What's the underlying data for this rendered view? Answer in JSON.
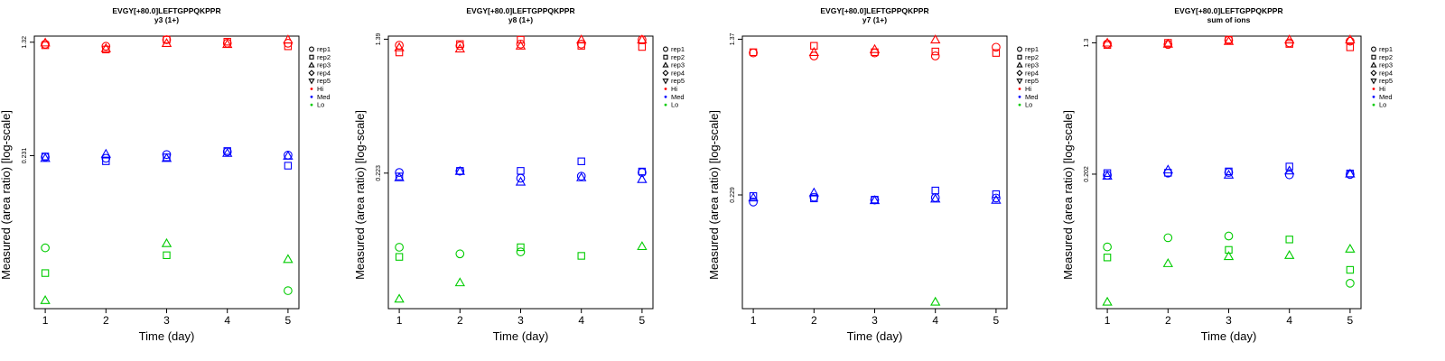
{
  "shape_legend": [
    {
      "label": "rep1",
      "shape": "circle"
    },
    {
      "label": "rep2",
      "shape": "square"
    },
    {
      "label": "rep3",
      "shape": "triangle-up"
    },
    {
      "label": "rep4",
      "shape": "diamond"
    },
    {
      "label": "rep5",
      "shape": "triangle-down"
    }
  ],
  "color_legend": [
    {
      "label": "Hi",
      "color": "#ff0000"
    },
    {
      "label": "Med",
      "color": "#0000ff"
    },
    {
      "label": "Lo",
      "color": "#00cc00"
    }
  ],
  "chart_data": [
    {
      "type": "scatter",
      "title": "EVGY[+80.0]LEFTGPPQKPPR",
      "subtitle": "y3 (1+)",
      "xlabel": "Time (day)",
      "ylabel": "Measured (area ratio) [log-scale]",
      "x_ticks": [
        "1",
        "2",
        "3",
        "4",
        "5"
      ],
      "y_ticks": [
        "0.231",
        "1.32"
      ],
      "log_scale": true,
      "ylim": [
        0.022,
        1.45
      ],
      "points": [
        {
          "group": "Hi",
          "rep": "rep1",
          "x": 1,
          "y": 1.28
        },
        {
          "group": "Hi",
          "rep": "rep2",
          "x": 1,
          "y": 1.26
        },
        {
          "group": "Hi",
          "rep": "rep3",
          "x": 1,
          "y": 1.31
        },
        {
          "group": "Hi",
          "rep": "rep1",
          "x": 2,
          "y": 1.24
        },
        {
          "group": "Hi",
          "rep": "rep2",
          "x": 2,
          "y": 1.18
        },
        {
          "group": "Hi",
          "rep": "rep3",
          "x": 2,
          "y": 1.2
        },
        {
          "group": "Hi",
          "rep": "rep1",
          "x": 3,
          "y": 1.38
        },
        {
          "group": "Hi",
          "rep": "rep2",
          "x": 3,
          "y": 1.4
        },
        {
          "group": "Hi",
          "rep": "rep3",
          "x": 3,
          "y": 1.3
        },
        {
          "group": "Hi",
          "rep": "rep1",
          "x": 4,
          "y": 1.3
        },
        {
          "group": "Hi",
          "rep": "rep2",
          "x": 4,
          "y": 1.33
        },
        {
          "group": "Hi",
          "rep": "rep3",
          "x": 4,
          "y": 1.28
        },
        {
          "group": "Hi",
          "rep": "rep3",
          "x": 5,
          "y": 1.42
        },
        {
          "group": "Hi",
          "rep": "rep2",
          "x": 5,
          "y": 1.24
        },
        {
          "group": "Hi",
          "rep": "rep1",
          "x": 5,
          "y": 1.3
        },
        {
          "group": "Med",
          "rep": "rep1",
          "x": 1,
          "y": 0.226
        },
        {
          "group": "Med",
          "rep": "rep2",
          "x": 1,
          "y": 0.228
        },
        {
          "group": "Med",
          "rep": "rep3",
          "x": 1,
          "y": 0.222
        },
        {
          "group": "Med",
          "rep": "rep3",
          "x": 2,
          "y": 0.237
        },
        {
          "group": "Med",
          "rep": "rep2",
          "x": 2,
          "y": 0.212
        },
        {
          "group": "Med",
          "rep": "rep1",
          "x": 2,
          "y": 0.222
        },
        {
          "group": "Med",
          "rep": "rep1",
          "x": 3,
          "y": 0.235
        },
        {
          "group": "Med",
          "rep": "rep2",
          "x": 3,
          "y": 0.225
        },
        {
          "group": "Med",
          "rep": "rep3",
          "x": 3,
          "y": 0.222
        },
        {
          "group": "Med",
          "rep": "rep1",
          "x": 4,
          "y": 0.245
        },
        {
          "group": "Med",
          "rep": "rep2",
          "x": 4,
          "y": 0.248
        },
        {
          "group": "Med",
          "rep": "rep3",
          "x": 4,
          "y": 0.24
        },
        {
          "group": "Med",
          "rep": "rep1",
          "x": 5,
          "y": 0.233
        },
        {
          "group": "Med",
          "rep": "rep2",
          "x": 5,
          "y": 0.198
        },
        {
          "group": "Med",
          "rep": "rep3",
          "x": 5,
          "y": 0.23
        },
        {
          "group": "Lo",
          "rep": "rep1",
          "x": 1,
          "y": 0.056
        },
        {
          "group": "Lo",
          "rep": "rep2",
          "x": 1,
          "y": 0.038
        },
        {
          "group": "Lo",
          "rep": "rep3",
          "x": 1,
          "y": 0.025
        },
        {
          "group": "Lo",
          "rep": "rep3",
          "x": 3,
          "y": 0.06
        },
        {
          "group": "Lo",
          "rep": "rep2",
          "x": 3,
          "y": 0.05
        },
        {
          "group": "Lo",
          "rep": "rep3",
          "x": 5,
          "y": 0.047
        },
        {
          "group": "Lo",
          "rep": "rep1",
          "x": 5,
          "y": 0.029
        }
      ]
    },
    {
      "type": "scatter",
      "title": "EVGY[+80.0]LEFTGPPQKPPR",
      "subtitle": "y8 (1+)",
      "xlabel": "Time (day)",
      "ylabel": "Measured (area ratio) [log-scale]",
      "x_ticks": [
        "1",
        "2",
        "3",
        "4",
        "5"
      ],
      "y_ticks": [
        "0.223",
        "1.39"
      ],
      "log_scale": true,
      "ylim": [
        0.035,
        1.45
      ],
      "points": [
        {
          "group": "Hi",
          "rep": "rep1",
          "x": 1,
          "y": 1.28
        },
        {
          "group": "Hi",
          "rep": "rep2",
          "x": 1,
          "y": 1.16
        },
        {
          "group": "Hi",
          "rep": "rep3",
          "x": 1,
          "y": 1.24
        },
        {
          "group": "Hi",
          "rep": "rep1",
          "x": 2,
          "y": 1.27
        },
        {
          "group": "Hi",
          "rep": "rep2",
          "x": 2,
          "y": 1.3
        },
        {
          "group": "Hi",
          "rep": "rep3",
          "x": 2,
          "y": 1.22
        },
        {
          "group": "Hi",
          "rep": "rep1",
          "x": 3,
          "y": 1.3
        },
        {
          "group": "Hi",
          "rep": "rep2",
          "x": 3,
          "y": 1.4
        },
        {
          "group": "Hi",
          "rep": "rep3",
          "x": 3,
          "y": 1.27
        },
        {
          "group": "Hi",
          "rep": "rep1",
          "x": 4,
          "y": 1.3
        },
        {
          "group": "Hi",
          "rep": "rep2",
          "x": 4,
          "y": 1.27
        },
        {
          "group": "Hi",
          "rep": "rep3",
          "x": 4,
          "y": 1.42
        },
        {
          "group": "Hi",
          "rep": "rep1",
          "x": 5,
          "y": 1.38
        },
        {
          "group": "Hi",
          "rep": "rep2",
          "x": 5,
          "y": 1.25
        },
        {
          "group": "Hi",
          "rep": "rep3",
          "x": 5,
          "y": 1.42
        },
        {
          "group": "Med",
          "rep": "rep1",
          "x": 1,
          "y": 0.225
        },
        {
          "group": "Med",
          "rep": "rep2",
          "x": 1,
          "y": 0.213
        },
        {
          "group": "Med",
          "rep": "rep3",
          "x": 1,
          "y": 0.21
        },
        {
          "group": "Med",
          "rep": "rep1",
          "x": 2,
          "y": 0.229
        },
        {
          "group": "Med",
          "rep": "rep2",
          "x": 2,
          "y": 0.23
        },
        {
          "group": "Med",
          "rep": "rep3",
          "x": 2,
          "y": 0.229
        },
        {
          "group": "Med",
          "rep": "rep1",
          "x": 3,
          "y": 0.208
        },
        {
          "group": "Med",
          "rep": "rep2",
          "x": 3,
          "y": 0.23
        },
        {
          "group": "Med",
          "rep": "rep3",
          "x": 3,
          "y": 0.198
        },
        {
          "group": "Med",
          "rep": "rep1",
          "x": 4,
          "y": 0.214
        },
        {
          "group": "Med",
          "rep": "rep2",
          "x": 4,
          "y": 0.262
        },
        {
          "group": "Med",
          "rep": "rep3",
          "x": 4,
          "y": 0.21
        },
        {
          "group": "Med",
          "rep": "rep1",
          "x": 5,
          "y": 0.225
        },
        {
          "group": "Med",
          "rep": "rep2",
          "x": 5,
          "y": 0.228
        },
        {
          "group": "Med",
          "rep": "rep3",
          "x": 5,
          "y": 0.205
        },
        {
          "group": "Lo",
          "rep": "rep1",
          "x": 1,
          "y": 0.081
        },
        {
          "group": "Lo",
          "rep": "rep2",
          "x": 1,
          "y": 0.071
        },
        {
          "group": "Lo",
          "rep": "rep3",
          "x": 1,
          "y": 0.04
        },
        {
          "group": "Lo",
          "rep": "rep1",
          "x": 2,
          "y": 0.074
        },
        {
          "group": "Lo",
          "rep": "rep3",
          "x": 2,
          "y": 0.05
        },
        {
          "group": "Lo",
          "rep": "rep1",
          "x": 3,
          "y": 0.076
        },
        {
          "group": "Lo",
          "rep": "rep2",
          "x": 3,
          "y": 0.081
        },
        {
          "group": "Lo",
          "rep": "rep2",
          "x": 4,
          "y": 0.072
        },
        {
          "group": "Lo",
          "rep": "rep3",
          "x": 5,
          "y": 0.082
        }
      ]
    },
    {
      "type": "scatter",
      "title": "EVGY[+80.0]LEFTGPPQKPPR",
      "subtitle": "y7 (1+)",
      "xlabel": "Time (day)",
      "ylabel": "Measured (area ratio) [log-scale]",
      "x_ticks": [
        "1",
        "2",
        "3",
        "4",
        "5"
      ],
      "y_ticks": [
        "0.229",
        "1.37"
      ],
      "log_scale": true,
      "ylim": [
        0.062,
        1.42
      ],
      "points": [
        {
          "group": "Hi",
          "rep": "rep1",
          "x": 1,
          "y": 1.17
        },
        {
          "group": "Hi",
          "rep": "rep2",
          "x": 1,
          "y": 1.18
        },
        {
          "group": "Hi",
          "rep": "rep1",
          "x": 2,
          "y": 1.13
        },
        {
          "group": "Hi",
          "rep": "rep2",
          "x": 2,
          "y": 1.27
        },
        {
          "group": "Hi",
          "rep": "rep3",
          "x": 2,
          "y": 1.18
        },
        {
          "group": "Hi",
          "rep": "rep1",
          "x": 3,
          "y": 1.17
        },
        {
          "group": "Hi",
          "rep": "rep2",
          "x": 3,
          "y": 1.18
        },
        {
          "group": "Hi",
          "rep": "rep3",
          "x": 3,
          "y": 1.22
        },
        {
          "group": "Hi",
          "rep": "rep1",
          "x": 4,
          "y": 1.13
        },
        {
          "group": "Hi",
          "rep": "rep2",
          "x": 4,
          "y": 1.19
        },
        {
          "group": "Hi",
          "rep": "rep3",
          "x": 4,
          "y": 1.37
        },
        {
          "group": "Hi",
          "rep": "rep1",
          "x": 5,
          "y": 1.25
        },
        {
          "group": "Hi",
          "rep": "rep2",
          "x": 5,
          "y": 1.17
        },
        {
          "group": "Med",
          "rep": "rep1",
          "x": 1,
          "y": 0.211
        },
        {
          "group": "Med",
          "rep": "rep2",
          "x": 1,
          "y": 0.226
        },
        {
          "group": "Med",
          "rep": "rep3",
          "x": 1,
          "y": 0.222
        },
        {
          "group": "Med",
          "rep": "rep1",
          "x": 2,
          "y": 0.223
        },
        {
          "group": "Med",
          "rep": "rep2",
          "x": 2,
          "y": 0.22
        },
        {
          "group": "Med",
          "rep": "rep3",
          "x": 2,
          "y": 0.235
        },
        {
          "group": "Med",
          "rep": "rep1",
          "x": 3,
          "y": 0.216
        },
        {
          "group": "Med",
          "rep": "rep2",
          "x": 3,
          "y": 0.217
        },
        {
          "group": "Med",
          "rep": "rep3",
          "x": 3,
          "y": 0.215
        },
        {
          "group": "Med",
          "rep": "rep1",
          "x": 4,
          "y": 0.222
        },
        {
          "group": "Med",
          "rep": "rep2",
          "x": 4,
          "y": 0.241
        },
        {
          "group": "Med",
          "rep": "rep3",
          "x": 4,
          "y": 0.219
        },
        {
          "group": "Med",
          "rep": "rep1",
          "x": 5,
          "y": 0.221
        },
        {
          "group": "Med",
          "rep": "rep2",
          "x": 5,
          "y": 0.231
        },
        {
          "group": "Med",
          "rep": "rep3",
          "x": 5,
          "y": 0.216
        },
        {
          "group": "Lo",
          "rep": "rep3",
          "x": 4,
          "y": 0.067
        }
      ]
    },
    {
      "type": "scatter",
      "title": "EVGY[+80.0]LEFTGPPQKPPR",
      "subtitle": "sum of ions",
      "xlabel": "Time (day)",
      "ylabel": "Measured (area ratio) [log-scale]",
      "x_ticks": [
        "1",
        "2",
        "3",
        "4",
        "5"
      ],
      "y_ticks": [
        "0.202",
        "1.3"
      ],
      "log_scale": true,
      "ylim": [
        0.03,
        1.43
      ],
      "points": [
        {
          "group": "Hi",
          "rep": "rep1",
          "x": 1,
          "y": 1.28
        },
        {
          "group": "Hi",
          "rep": "rep2",
          "x": 1,
          "y": 1.26
        },
        {
          "group": "Hi",
          "rep": "rep3",
          "x": 1,
          "y": 1.3
        },
        {
          "group": "Hi",
          "rep": "rep1",
          "x": 2,
          "y": 1.27
        },
        {
          "group": "Hi",
          "rep": "rep2",
          "x": 2,
          "y": 1.3
        },
        {
          "group": "Hi",
          "rep": "rep3",
          "x": 2,
          "y": 1.28
        },
        {
          "group": "Hi",
          "rep": "rep1",
          "x": 3,
          "y": 1.35
        },
        {
          "group": "Hi",
          "rep": "rep2",
          "x": 3,
          "y": 1.37
        },
        {
          "group": "Hi",
          "rep": "rep3",
          "x": 3,
          "y": 1.33
        },
        {
          "group": "Hi",
          "rep": "rep1",
          "x": 4,
          "y": 1.3
        },
        {
          "group": "Hi",
          "rep": "rep2",
          "x": 4,
          "y": 1.28
        },
        {
          "group": "Hi",
          "rep": "rep3",
          "x": 4,
          "y": 1.38
        },
        {
          "group": "Hi",
          "rep": "rep1",
          "x": 5,
          "y": 1.33
        },
        {
          "group": "Hi",
          "rep": "rep2",
          "x": 5,
          "y": 1.22
        },
        {
          "group": "Hi",
          "rep": "rep3",
          "x": 5,
          "y": 1.38
        },
        {
          "group": "Med",
          "rep": "rep1",
          "x": 1,
          "y": 0.199
        },
        {
          "group": "Med",
          "rep": "rep2",
          "x": 1,
          "y": 0.205
        },
        {
          "group": "Med",
          "rep": "rep3",
          "x": 1,
          "y": 0.197
        },
        {
          "group": "Med",
          "rep": "rep1",
          "x": 2,
          "y": 0.205
        },
        {
          "group": "Med",
          "rep": "rep2",
          "x": 2,
          "y": 0.206
        },
        {
          "group": "Med",
          "rep": "rep3",
          "x": 2,
          "y": 0.215
        },
        {
          "group": "Med",
          "rep": "rep1",
          "x": 3,
          "y": 0.207
        },
        {
          "group": "Med",
          "rep": "rep2",
          "x": 3,
          "y": 0.21
        },
        {
          "group": "Med",
          "rep": "rep3",
          "x": 3,
          "y": 0.2
        },
        {
          "group": "Med",
          "rep": "rep1",
          "x": 4,
          "y": 0.2
        },
        {
          "group": "Med",
          "rep": "rep2",
          "x": 4,
          "y": 0.225
        },
        {
          "group": "Med",
          "rep": "rep3",
          "x": 4,
          "y": 0.212
        },
        {
          "group": "Med",
          "rep": "rep1",
          "x": 5,
          "y": 0.201
        },
        {
          "group": "Med",
          "rep": "rep2",
          "x": 5,
          "y": 0.204
        },
        {
          "group": "Med",
          "rep": "rep3",
          "x": 5,
          "y": 0.203
        },
        {
          "group": "Lo",
          "rep": "rep1",
          "x": 1,
          "y": 0.072
        },
        {
          "group": "Lo",
          "rep": "rep2",
          "x": 1,
          "y": 0.062
        },
        {
          "group": "Lo",
          "rep": "rep3",
          "x": 1,
          "y": 0.033
        },
        {
          "group": "Lo",
          "rep": "rep1",
          "x": 2,
          "y": 0.082
        },
        {
          "group": "Lo",
          "rep": "rep3",
          "x": 2,
          "y": 0.057
        },
        {
          "group": "Lo",
          "rep": "rep1",
          "x": 3,
          "y": 0.084
        },
        {
          "group": "Lo",
          "rep": "rep2",
          "x": 3,
          "y": 0.069
        },
        {
          "group": "Lo",
          "rep": "rep3",
          "x": 3,
          "y": 0.063
        },
        {
          "group": "Lo",
          "rep": "rep2",
          "x": 4,
          "y": 0.08
        },
        {
          "group": "Lo",
          "rep": "rep3",
          "x": 4,
          "y": 0.064
        },
        {
          "group": "Lo",
          "rep": "rep3",
          "x": 5,
          "y": 0.07
        },
        {
          "group": "Lo",
          "rep": "rep2",
          "x": 5,
          "y": 0.052
        },
        {
          "group": "Lo",
          "rep": "rep1",
          "x": 5,
          "y": 0.043
        }
      ]
    }
  ]
}
